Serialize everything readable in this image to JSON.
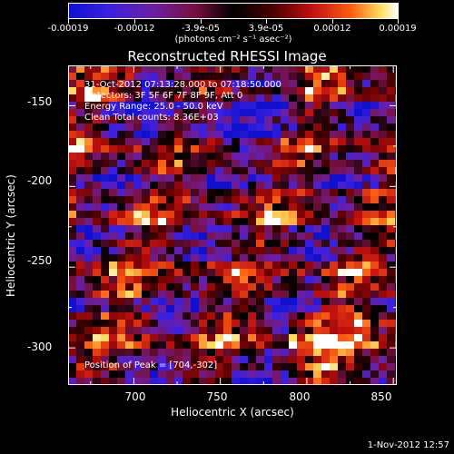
{
  "colorbar": {
    "ticks": [
      "-0.00019",
      "-0.00012",
      "-3.9e-05",
      "3.9e-05",
      "0.00012",
      "0.00019"
    ],
    "units": "(photons cm⁻² s⁻¹ asec⁻²)"
  },
  "chart_data": {
    "type": "heatmap",
    "title": "Reconstructed RHESSI Image",
    "xlabel": "Heliocentric X (arcsec)",
    "ylabel": "Heliocentric Y (arcsec)",
    "xlim": [
      662,
      852
    ],
    "ylim": [
      -323,
      -125
    ],
    "xticks": [
      700,
      750,
      800,
      850
    ],
    "yticks": [
      -150,
      -200,
      -250,
      -300
    ],
    "color_range": [
      -0.00019,
      0.00019
    ],
    "peak": [
      704,
      -302
    ],
    "annotations": [
      "31-Oct-2012 07:13:28.000 to 07:18:50.000",
      "Detectors: 3F 5F 6F 7F 8F 9F, Att 0",
      "Energy Range: 25.0 - 50.0 keV",
      "Clean     Total counts: 8.36E+03"
    ],
    "peak_label": "Position of Peak = [704,-302]"
  },
  "timestamp": "1-Nov-2012 12:57"
}
